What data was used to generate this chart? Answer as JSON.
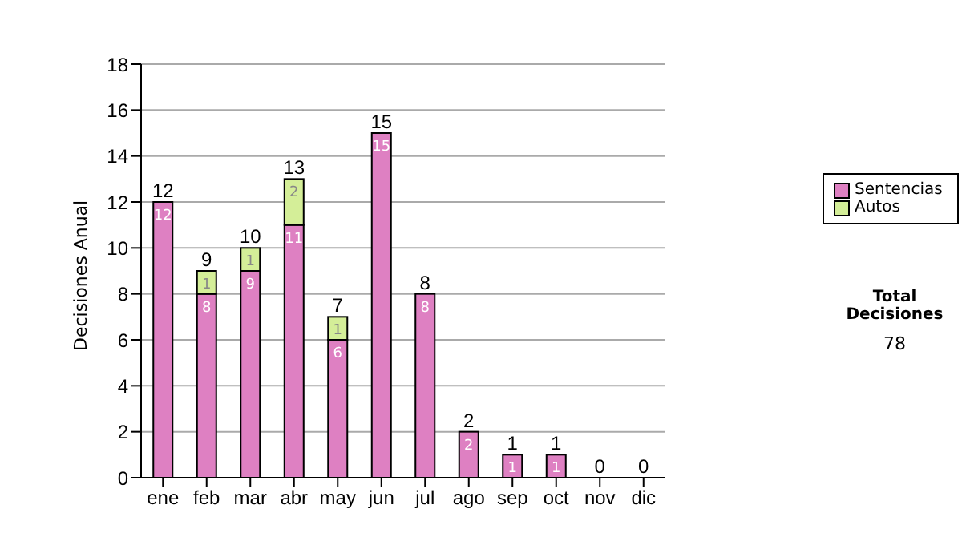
{
  "chart_data": {
    "type": "bar",
    "stacked": true,
    "ylabel": "Decisiones Anual",
    "categories": [
      "ene",
      "feb",
      "mar",
      "abr",
      "may",
      "jun",
      "jul",
      "ago",
      "sep",
      "oct",
      "nov",
      "dic"
    ],
    "series": [
      {
        "name": "Sentencias",
        "color": "#de80c2",
        "values": [
          12,
          8,
          9,
          11,
          6,
          15,
          8,
          2,
          1,
          1,
          0,
          0
        ],
        "value_labels": [
          "12",
          "8",
          "9",
          "11",
          "6",
          "15",
          "8",
          "2",
          "1",
          "1",
          null,
          null
        ]
      },
      {
        "name": "Autos",
        "color": "#d4ee98",
        "values": [
          0,
          1,
          1,
          2,
          1,
          0,
          0,
          0,
          0,
          0,
          0,
          0
        ],
        "value_labels": [
          null,
          "1",
          "1",
          "2",
          "1",
          null,
          null,
          null,
          null,
          null,
          null,
          null
        ]
      }
    ],
    "totals": [
      "12",
      "9",
      "10",
      "13",
      "7",
      "15",
      "8",
      "2",
      "1",
      "1",
      "0",
      "0"
    ],
    "ylim": [
      0,
      18
    ],
    "yticks": [
      0,
      2,
      4,
      6,
      8,
      10,
      12,
      14,
      16,
      18
    ],
    "grid": "y",
    "legend": "right",
    "annotations": [
      "Total Decisiones",
      "78"
    ]
  }
}
